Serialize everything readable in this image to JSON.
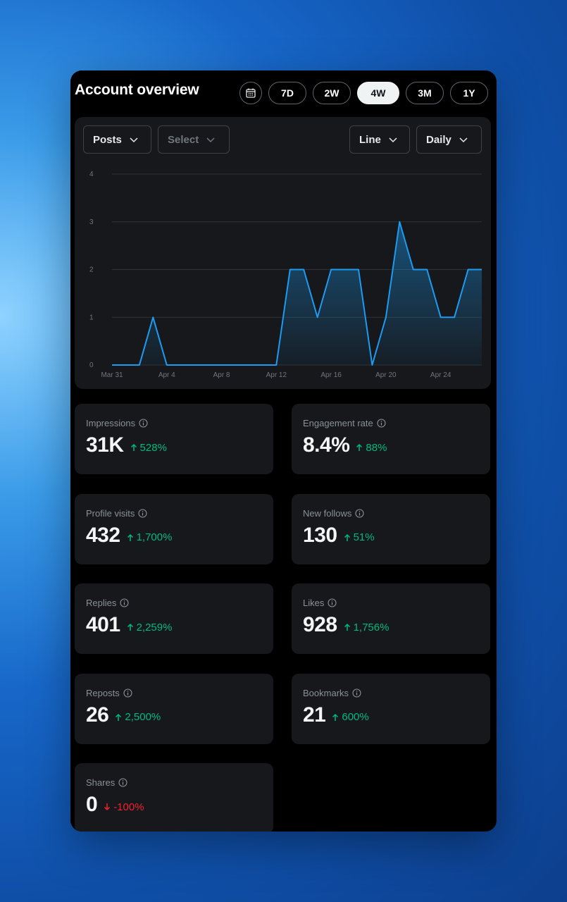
{
  "header": {
    "title": "Account overview",
    "calendar_icon": "calendar-icon",
    "ranges": [
      "7D",
      "2W",
      "4W",
      "3M",
      "1Y"
    ],
    "selected_range": "4W"
  },
  "filters": {
    "metric": "Posts",
    "compare": "Select",
    "chart_type": "Line",
    "interval": "Daily"
  },
  "chart_data": {
    "type": "area",
    "x": [
      "Mar 31",
      "Apr 1",
      "Apr 2",
      "Apr 3",
      "Apr 4",
      "Apr 5",
      "Apr 6",
      "Apr 7",
      "Apr 8",
      "Apr 9",
      "Apr 10",
      "Apr 11",
      "Apr 12",
      "Apr 13",
      "Apr 14",
      "Apr 15",
      "Apr 16",
      "Apr 17",
      "Apr 18",
      "Apr 19",
      "Apr 20",
      "Apr 21",
      "Apr 22",
      "Apr 23",
      "Apr 24",
      "Apr 25",
      "Apr 26",
      "Apr 27"
    ],
    "values": [
      0,
      0,
      0,
      1,
      0,
      0,
      0,
      0,
      0,
      0,
      0,
      0,
      0,
      2,
      2,
      1,
      2,
      2,
      2,
      0,
      1,
      3,
      2,
      2,
      1,
      1,
      2,
      2
    ],
    "xticks": [
      "Mar 31",
      "Apr 4",
      "Apr 8",
      "Apr 12",
      "Apr 16",
      "Apr 20",
      "Apr 24"
    ],
    "yticks": [
      "0",
      "1",
      "2",
      "3",
      "4"
    ],
    "ylim": [
      0,
      4
    ],
    "grid": true,
    "color": "#1d9bf0"
  },
  "metrics": [
    {
      "label": "Impressions",
      "value": "31K",
      "change": "528%",
      "direction": "up"
    },
    {
      "label": "Engagement rate",
      "value": "8.4%",
      "change": "88%",
      "direction": "up"
    },
    {
      "label": "Profile visits",
      "value": "432",
      "change": "1,700%",
      "direction": "up"
    },
    {
      "label": "New follows",
      "value": "130",
      "change": "51%",
      "direction": "up"
    },
    {
      "label": "Replies",
      "value": "401",
      "change": "2,259%",
      "direction": "up"
    },
    {
      "label": "Likes",
      "value": "928",
      "change": "1,756%",
      "direction": "up"
    },
    {
      "label": "Reposts",
      "value": "26",
      "change": "2,500%",
      "direction": "up"
    },
    {
      "label": "Bookmarks",
      "value": "21",
      "change": "600%",
      "direction": "up"
    },
    {
      "label": "Shares",
      "value": "0",
      "change": "-100%",
      "direction": "down"
    }
  ],
  "colors": {
    "positive": "#00ba7c",
    "negative": "#f4212e",
    "accent": "#1d9bf0",
    "card": "#16181c"
  }
}
